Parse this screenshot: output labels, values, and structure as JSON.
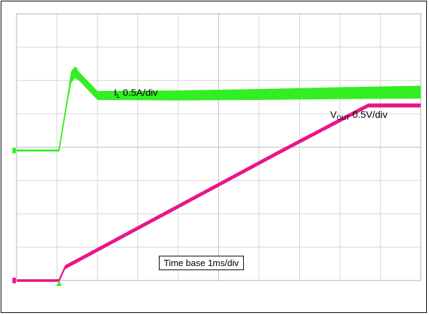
{
  "chart_data": {
    "type": "line",
    "title": "",
    "x_unit_label": "Time base 1ms/div",
    "x_divisions": 10,
    "y_divisions": 8,
    "x": [
      0,
      1.0,
      1.3,
      2,
      3,
      4,
      5,
      6,
      7,
      8,
      9,
      10
    ],
    "series": [
      {
        "name": "IL",
        "label_main": "I",
        "label_sub": "L",
        "label_rest": " 0.5A/div",
        "color": "#33ee22",
        "x": [
          0,
          1.05,
          1.35,
          1.45,
          2,
          4,
          6,
          8,
          10
        ],
        "values": [
          -0.1,
          -0.1,
          2.1,
          2.25,
          1.55,
          1.55,
          1.58,
          1.62,
          1.65
        ],
        "noise_band": 0.35
      },
      {
        "name": "VOUT",
        "label_main": "V",
        "label_sub": "OUT",
        "label_rest": " 0.5V/div",
        "color": "#e8168a",
        "x": [
          0,
          1.05,
          1.2,
          6.5,
          8.7,
          10
        ],
        "values": [
          -4.0,
          -4.0,
          -3.6,
          -0.15,
          1.25,
          1.25
        ],
        "noise_band": 0.12
      }
    ],
    "grid": true,
    "ylim": [
      -4,
      4
    ],
    "xlim": [
      0,
      10
    ]
  },
  "annotations": {
    "il_text": "0.5A/div",
    "vout_text": "0.5V/div",
    "timebase_text": "Time base 1ms/div"
  }
}
